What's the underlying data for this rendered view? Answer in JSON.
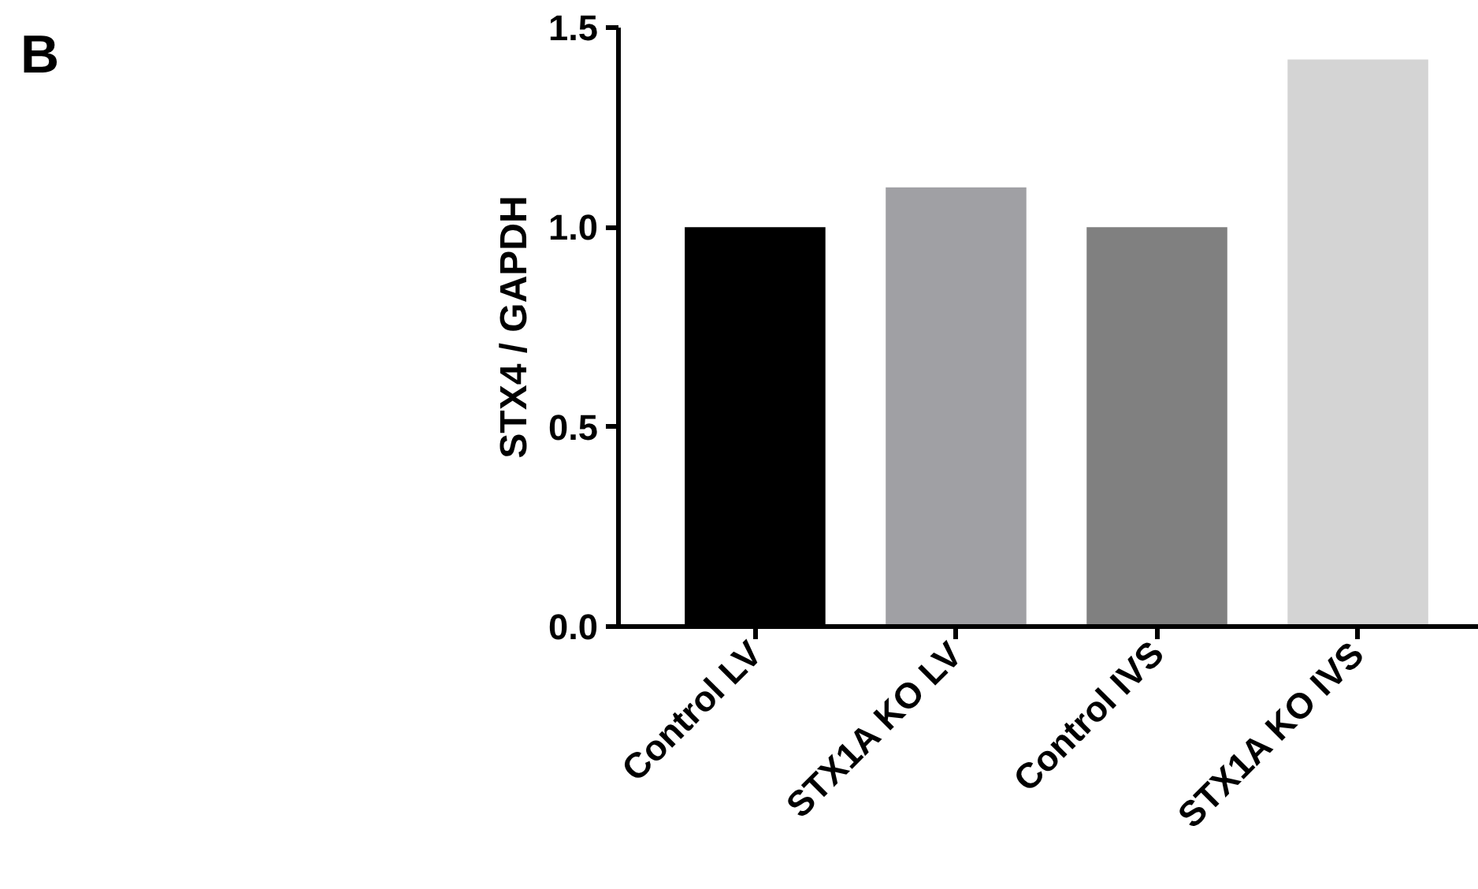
{
  "chart_data": {
    "type": "bar",
    "ylabel": "STX4 / GAPDH",
    "annotations": [
      "B"
    ],
    "categories": [
      "Control LV",
      "STX1A KO LV",
      "Control IVS",
      "STX1A KO IVS"
    ],
    "values": [
      1.0,
      1.1,
      1.0,
      1.42
    ],
    "colors": [
      "#000000",
      "#a0a0a4",
      "#808080",
      "#d4d4d4"
    ],
    "ylim": [
      0,
      1.5
    ],
    "yticks": [
      {
        "value": 0,
        "label": "0.0"
      },
      {
        "value": 0.5,
        "label": "0.5"
      },
      {
        "value": 1,
        "label": "1.0"
      },
      {
        "value": 1.5,
        "label": "1.5"
      }
    ],
    "grid": false
  }
}
